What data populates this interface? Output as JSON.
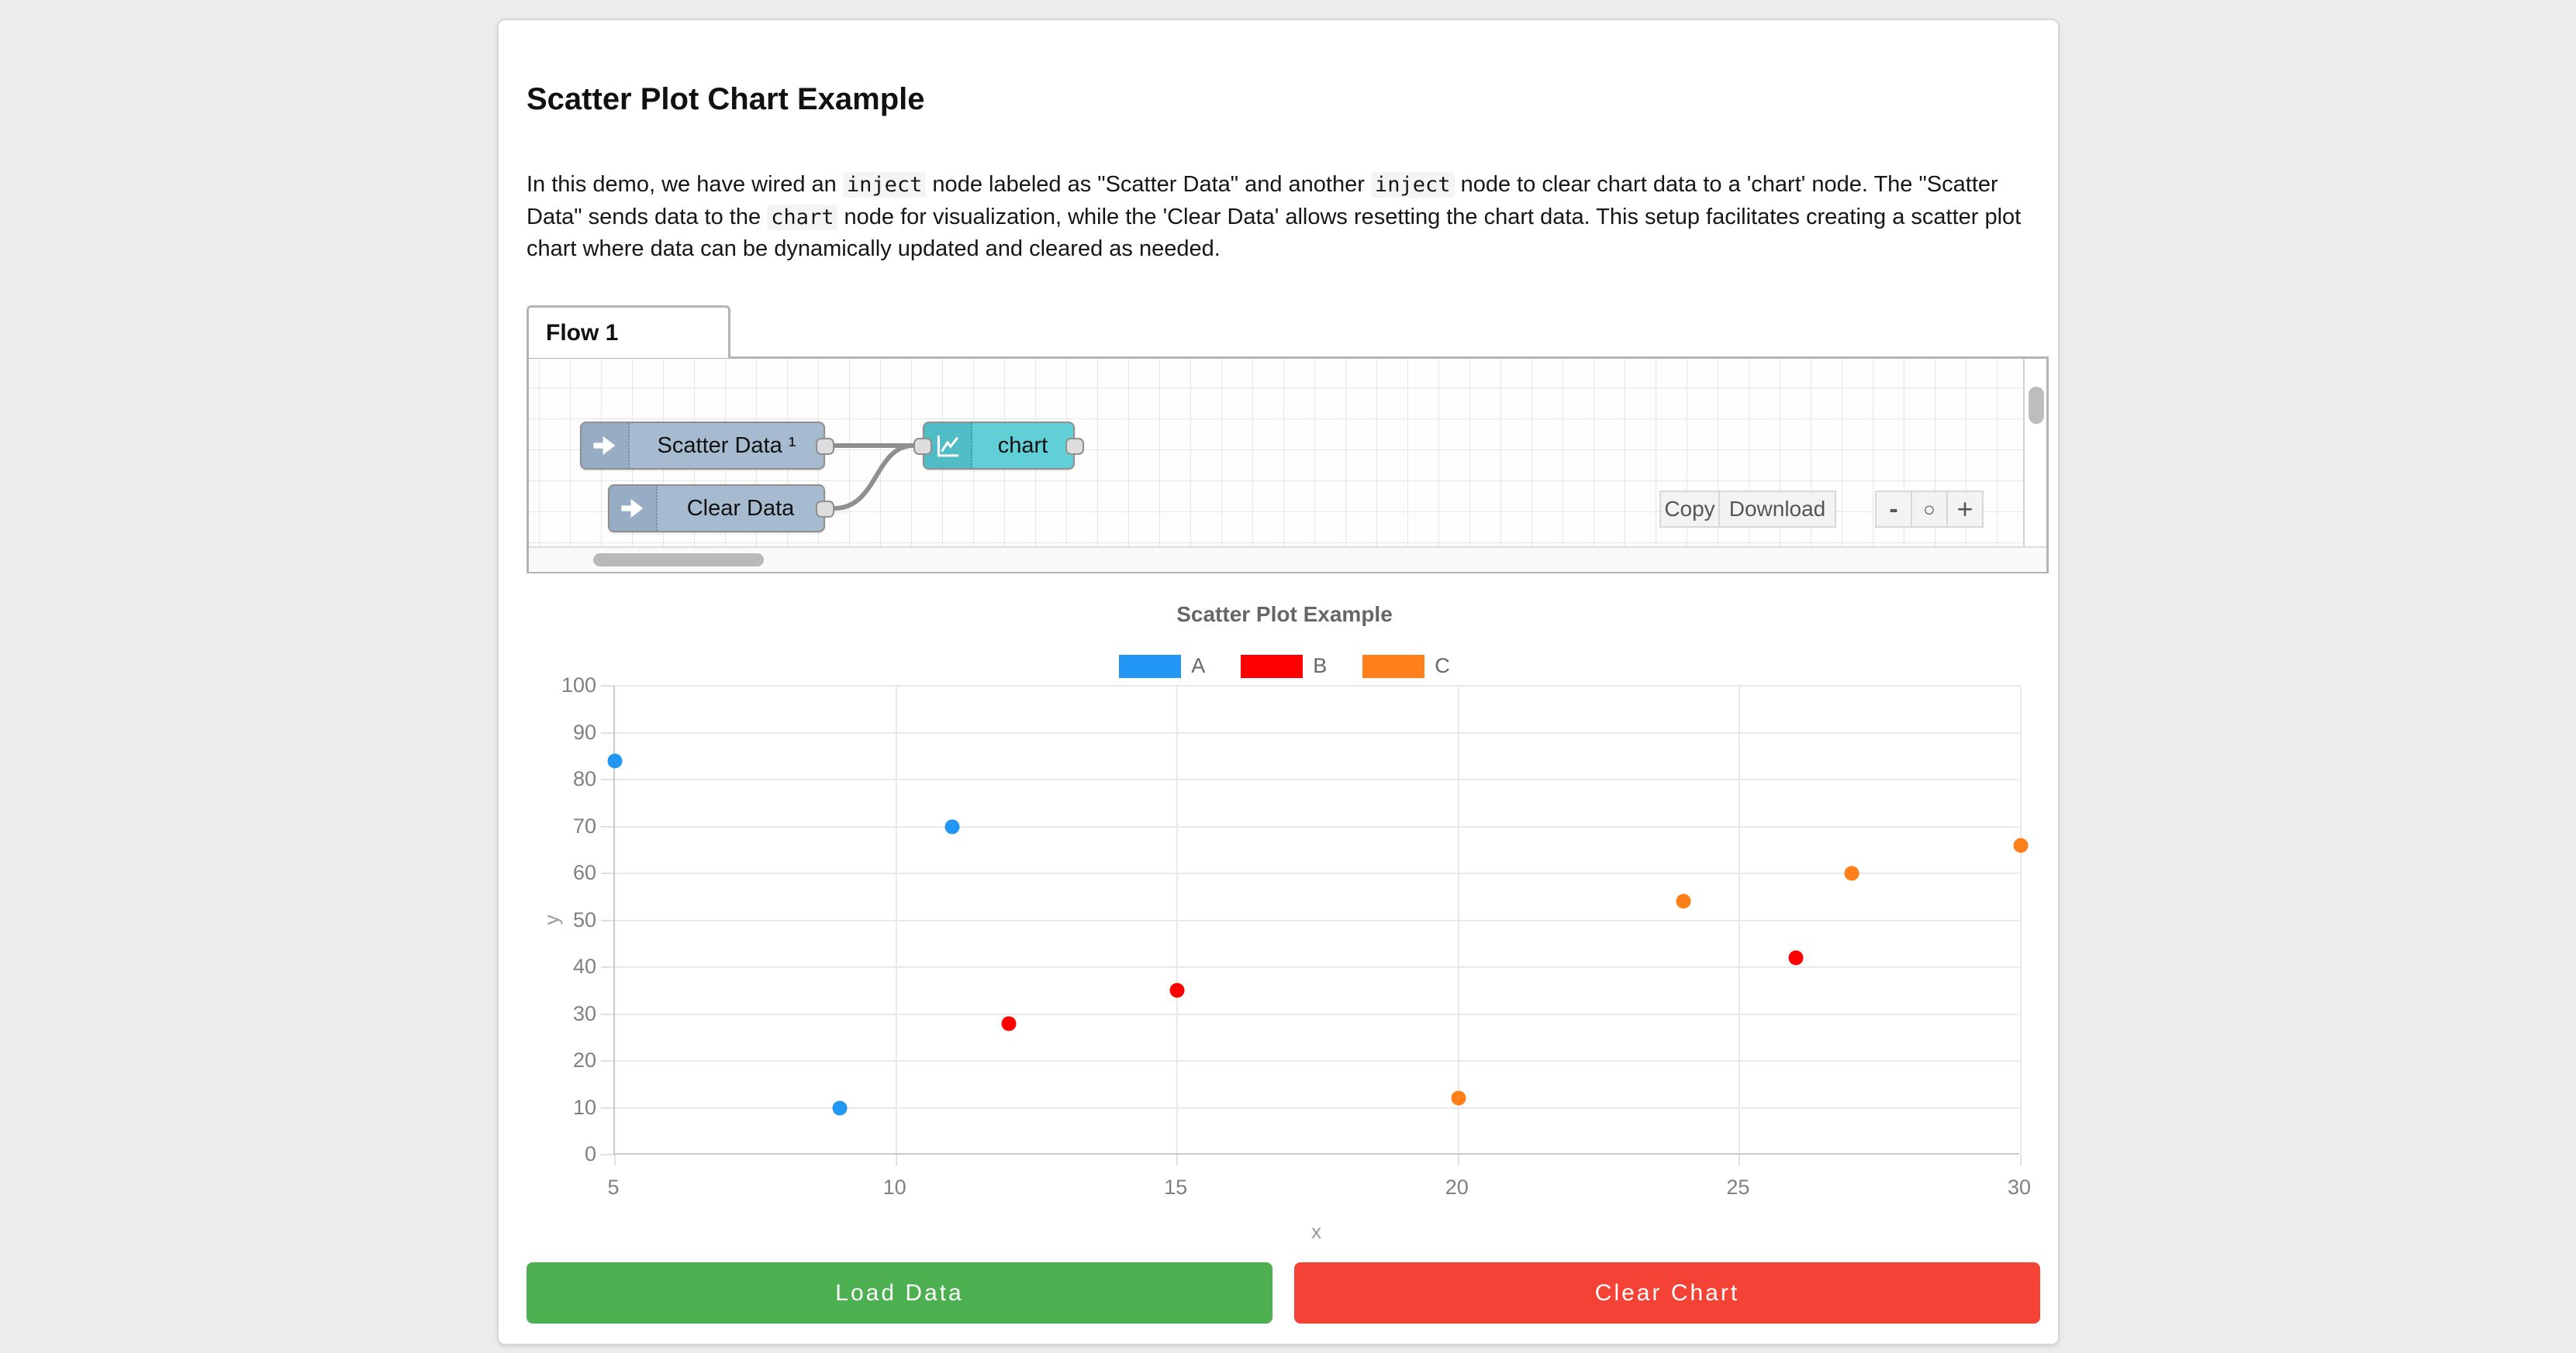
{
  "page": {
    "title": "Scatter Plot Chart Example"
  },
  "intro": {
    "segments": [
      {
        "type": "text",
        "value": "In this demo, we have wired an "
      },
      {
        "type": "code",
        "value": "inject"
      },
      {
        "type": "text",
        "value": " node labeled as \"Scatter Data\" and another "
      },
      {
        "type": "code",
        "value": "inject"
      },
      {
        "type": "text",
        "value": " node to clear chart data to a 'chart' node. The \"Scatter Data\" sends data to the "
      },
      {
        "type": "code",
        "value": "chart"
      },
      {
        "type": "text",
        "value": " node for visualization, while the 'Clear Data' allows resetting the chart data. This setup facilitates creating a scatter plot chart where data can be dynamically updated and cleared as needed."
      }
    ]
  },
  "flow": {
    "tab_label": "Flow 1",
    "nodes": [
      {
        "label": "Scatter Data ¹",
        "type": "inject"
      },
      {
        "label": "Clear Data",
        "type": "inject"
      },
      {
        "label": "chart",
        "type": "chart"
      }
    ],
    "colors": {
      "inject_body": "#a6bbcf",
      "inject_icon_region": "#96adc4",
      "chart_body": "#60cfd6",
      "chart_icon_region": "#4fbcc6",
      "wire": "#8f8f8f"
    },
    "toolbar": {
      "copy_label": "Copy",
      "download_label": "Download",
      "zoom_out_label": "-",
      "zoom_reset_label": "○",
      "zoom_in_label": "+"
    }
  },
  "chart_data": {
    "type": "scatter",
    "title": "Scatter Plot Example",
    "xlabel": "x",
    "ylabel": "y",
    "xlim": [
      5,
      30
    ],
    "ylim": [
      0,
      100
    ],
    "x_ticks": [
      5,
      10,
      15,
      20,
      25,
      30
    ],
    "y_ticks": [
      0,
      10,
      20,
      30,
      40,
      50,
      60,
      70,
      80,
      90,
      100
    ],
    "grid": true,
    "legend_position": "top",
    "series": [
      {
        "name": "A",
        "color": "#2196f3",
        "points": [
          [
            5,
            84
          ],
          [
            9,
            10
          ],
          [
            11,
            70
          ]
        ]
      },
      {
        "name": "B",
        "color": "#ff0000",
        "points": [
          [
            12,
            28
          ],
          [
            15,
            35
          ],
          [
            26,
            42
          ]
        ]
      },
      {
        "name": "C",
        "color": "#ff7f1a",
        "points": [
          [
            20,
            12
          ],
          [
            24,
            54
          ],
          [
            27,
            60
          ],
          [
            30,
            66
          ]
        ]
      }
    ]
  },
  "actions": {
    "load_label": "Load Data",
    "load_color": "#4caf50",
    "clear_label": "Clear Chart",
    "clear_color": "#f44336"
  }
}
